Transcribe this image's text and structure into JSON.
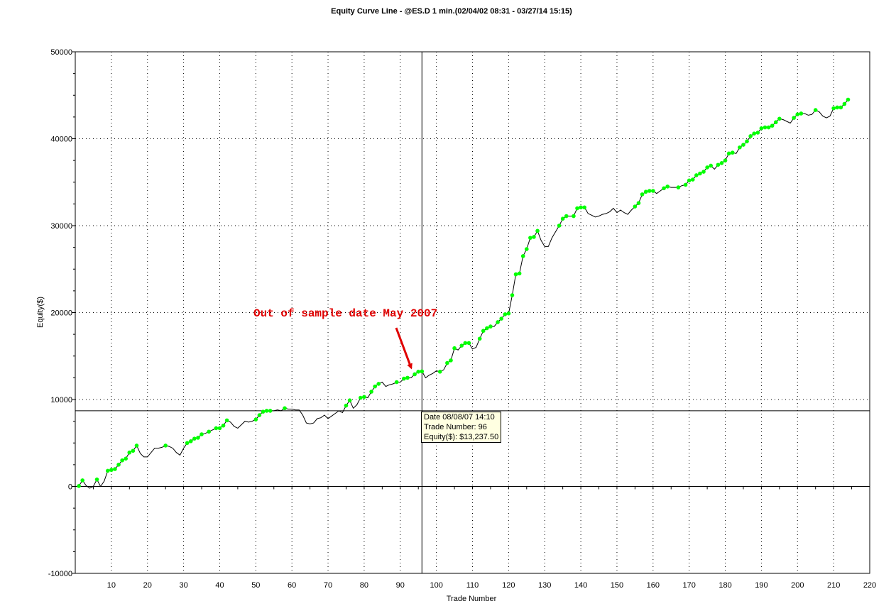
{
  "chart_data": {
    "type": "line",
    "title": "Equity Curve Line - @ES.D 1 min.(02/04/02 08:31 - 03/27/14 15:15)",
    "xlabel": "Trade Number",
    "ylabel": "Equity($)",
    "xlim": [
      0,
      220
    ],
    "ylim": [
      -10000,
      50000
    ],
    "x_ticks": [
      10,
      20,
      30,
      40,
      50,
      60,
      70,
      80,
      90,
      100,
      110,
      120,
      130,
      140,
      150,
      160,
      170,
      180,
      190,
      200,
      210,
      220
    ],
    "y_ticks": [
      -10000,
      0,
      10000,
      20000,
      30000,
      40000,
      50000
    ],
    "grid": true,
    "line_color": "#000000",
    "marker_color": "#00ff00",
    "series": [
      {
        "points": [
          [
            1,
            50
          ],
          [
            2,
            700
          ],
          [
            3,
            100
          ],
          [
            4,
            -200
          ],
          [
            5,
            0
          ],
          [
            6,
            800
          ],
          [
            7,
            0
          ],
          [
            8,
            600
          ],
          [
            9,
            1800
          ],
          [
            10,
            1900
          ],
          [
            11,
            2000
          ],
          [
            12,
            2500
          ],
          [
            13,
            3000
          ],
          [
            14,
            3200
          ],
          [
            15,
            3900
          ],
          [
            16,
            4100
          ],
          [
            17,
            4700
          ],
          [
            18,
            3800
          ],
          [
            19,
            3400
          ],
          [
            20,
            3400
          ],
          [
            21,
            3900
          ],
          [
            22,
            4400
          ],
          [
            23,
            4400
          ],
          [
            24,
            4500
          ],
          [
            25,
            4700
          ],
          [
            26,
            4600
          ],
          [
            27,
            4400
          ],
          [
            28,
            3900
          ],
          [
            29,
            3600
          ],
          [
            30,
            4400
          ],
          [
            31,
            5000
          ],
          [
            32,
            5200
          ],
          [
            33,
            5500
          ],
          [
            34,
            5600
          ],
          [
            35,
            6000
          ],
          [
            36,
            6100
          ],
          [
            37,
            6300
          ],
          [
            38,
            6500
          ],
          [
            39,
            6700
          ],
          [
            40,
            6700
          ],
          [
            41,
            7000
          ],
          [
            42,
            7600
          ],
          [
            43,
            7400
          ],
          [
            44,
            6900
          ],
          [
            45,
            6700
          ],
          [
            46,
            7100
          ],
          [
            47,
            7500
          ],
          [
            48,
            7400
          ],
          [
            49,
            7500
          ],
          [
            50,
            7700
          ],
          [
            51,
            8200
          ],
          [
            52,
            8600
          ],
          [
            53,
            8700
          ],
          [
            54,
            8700
          ],
          [
            55,
            8700
          ],
          [
            56,
            8800
          ],
          [
            57,
            8700
          ],
          [
            58,
            9000
          ],
          [
            59,
            8900
          ],
          [
            60,
            8900
          ],
          [
            61,
            8800
          ],
          [
            62,
            8800
          ],
          [
            63,
            8200
          ],
          [
            64,
            7300
          ],
          [
            65,
            7200
          ],
          [
            66,
            7300
          ],
          [
            67,
            7800
          ],
          [
            68,
            7900
          ],
          [
            69,
            8200
          ],
          [
            70,
            7800
          ],
          [
            71,
            8100
          ],
          [
            72,
            8400
          ],
          [
            73,
            8700
          ],
          [
            74,
            8500
          ],
          [
            75,
            9300
          ],
          [
            76,
            9900
          ],
          [
            77,
            9000
          ],
          [
            78,
            9400
          ],
          [
            79,
            10200
          ],
          [
            80,
            10300
          ],
          [
            81,
            10200
          ],
          [
            82,
            10900
          ],
          [
            83,
            11500
          ],
          [
            84,
            11800
          ],
          [
            85,
            12000
          ],
          [
            86,
            11500
          ],
          [
            87,
            11700
          ],
          [
            88,
            11800
          ],
          [
            89,
            12000
          ],
          [
            90,
            12000
          ],
          [
            91,
            12400
          ],
          [
            92,
            12500
          ],
          [
            93,
            12500
          ],
          [
            94,
            12900
          ],
          [
            95,
            13200
          ],
          [
            96,
            13237.5
          ],
          [
            97,
            12500
          ],
          [
            98,
            12800
          ],
          [
            99,
            13000
          ],
          [
            100,
            13300
          ],
          [
            101,
            13200
          ],
          [
            102,
            13400
          ],
          [
            103,
            14200
          ],
          [
            104,
            14500
          ],
          [
            105,
            15900
          ],
          [
            106,
            15700
          ],
          [
            107,
            16200
          ],
          [
            108,
            16500
          ],
          [
            109,
            16500
          ],
          [
            110,
            15800
          ],
          [
            111,
            16000
          ],
          [
            112,
            17000
          ],
          [
            113,
            17900
          ],
          [
            114,
            18200
          ],
          [
            115,
            18400
          ],
          [
            116,
            18400
          ],
          [
            117,
            18900
          ],
          [
            118,
            19300
          ],
          [
            119,
            19800
          ],
          [
            120,
            19900
          ],
          [
            121,
            22000
          ],
          [
            122,
            24400
          ],
          [
            123,
            24500
          ],
          [
            124,
            26500
          ],
          [
            125,
            27300
          ],
          [
            126,
            28600
          ],
          [
            127,
            28700
          ],
          [
            128,
            29400
          ],
          [
            129,
            28300
          ],
          [
            130,
            27600
          ],
          [
            131,
            27600
          ],
          [
            132,
            28600
          ],
          [
            133,
            29300
          ],
          [
            134,
            30000
          ],
          [
            135,
            30800
          ],
          [
            136,
            31100
          ],
          [
            137,
            31100
          ],
          [
            138,
            31100
          ],
          [
            139,
            32000
          ],
          [
            140,
            32100
          ],
          [
            141,
            32100
          ],
          [
            142,
            31400
          ],
          [
            143,
            31200
          ],
          [
            144,
            31000
          ],
          [
            145,
            31100
          ],
          [
            146,
            31300
          ],
          [
            147,
            31400
          ],
          [
            148,
            31600
          ],
          [
            149,
            32000
          ],
          [
            150,
            31500
          ],
          [
            151,
            31800
          ],
          [
            152,
            31500
          ],
          [
            153,
            31300
          ],
          [
            154,
            31800
          ],
          [
            155,
            32200
          ],
          [
            156,
            32600
          ],
          [
            157,
            33600
          ],
          [
            158,
            33900
          ],
          [
            159,
            34000
          ],
          [
            160,
            34000
          ],
          [
            161,
            33700
          ],
          [
            162,
            34000
          ],
          [
            163,
            34300
          ],
          [
            164,
            34500
          ],
          [
            165,
            34400
          ],
          [
            166,
            34400
          ],
          [
            167,
            34400
          ],
          [
            168,
            34600
          ],
          [
            169,
            34700
          ],
          [
            170,
            35200
          ],
          [
            171,
            35300
          ],
          [
            172,
            35800
          ],
          [
            173,
            36000
          ],
          [
            174,
            36200
          ],
          [
            175,
            36700
          ],
          [
            176,
            36900
          ],
          [
            177,
            36500
          ],
          [
            178,
            37000
          ],
          [
            179,
            37200
          ],
          [
            180,
            37500
          ],
          [
            181,
            38300
          ],
          [
            182,
            38400
          ],
          [
            183,
            38300
          ],
          [
            184,
            39000
          ],
          [
            185,
            39300
          ],
          [
            186,
            39700
          ],
          [
            187,
            40300
          ],
          [
            188,
            40600
          ],
          [
            189,
            40700
          ],
          [
            190,
            41200
          ],
          [
            191,
            41300
          ],
          [
            192,
            41300
          ],
          [
            193,
            41500
          ],
          [
            194,
            41900
          ],
          [
            195,
            42300
          ],
          [
            196,
            42200
          ],
          [
            197,
            42000
          ],
          [
            198,
            41800
          ],
          [
            199,
            42400
          ],
          [
            200,
            42800
          ],
          [
            201,
            42900
          ],
          [
            202,
            42900
          ],
          [
            203,
            42700
          ],
          [
            204,
            42800
          ],
          [
            205,
            43300
          ],
          [
            206,
            43100
          ],
          [
            207,
            42600
          ],
          [
            208,
            42400
          ],
          [
            209,
            42600
          ],
          [
            210,
            43500
          ],
          [
            211,
            43600
          ],
          [
            212,
            43600
          ],
          [
            213,
            44000
          ],
          [
            214,
            44500
          ]
        ],
        "markers": [
          1,
          2,
          6,
          9,
          10,
          11,
          12,
          13,
          14,
          15,
          16,
          17,
          25,
          31,
          32,
          33,
          34,
          35,
          37,
          39,
          40,
          41,
          42,
          50,
          51,
          52,
          53,
          54,
          58,
          75,
          76,
          79,
          80,
          82,
          83,
          84,
          89,
          91,
          92,
          94,
          95,
          96,
          101,
          103,
          104,
          105,
          107,
          108,
          109,
          112,
          113,
          114,
          115,
          117,
          118,
          119,
          120,
          121,
          122,
          123,
          124,
          125,
          126,
          127,
          128,
          134,
          135,
          136,
          138,
          139,
          140,
          141,
          155,
          156,
          157,
          158,
          159,
          160,
          163,
          164,
          167,
          169,
          170,
          171,
          172,
          173,
          174,
          175,
          176,
          178,
          179,
          180,
          181,
          182,
          184,
          185,
          186,
          187,
          188,
          189,
          190,
          191,
          192,
          193,
          194,
          195,
          199,
          200,
          201,
          205,
          210,
          211,
          212,
          213,
          214
        ]
      }
    ],
    "crosshair": {
      "x": 96,
      "y": 8700
    },
    "annotations": [
      {
        "text": "Out of sample date May 2007",
        "color": "#e00000",
        "arrow_to": [
          95,
          13300
        ]
      }
    ]
  },
  "tooltip": {
    "date": "Date 08/08/07 14:10",
    "trade": "Trade Number: 96",
    "equity": "Equity($): $13,237.50",
    "background": "#ffffe1"
  }
}
